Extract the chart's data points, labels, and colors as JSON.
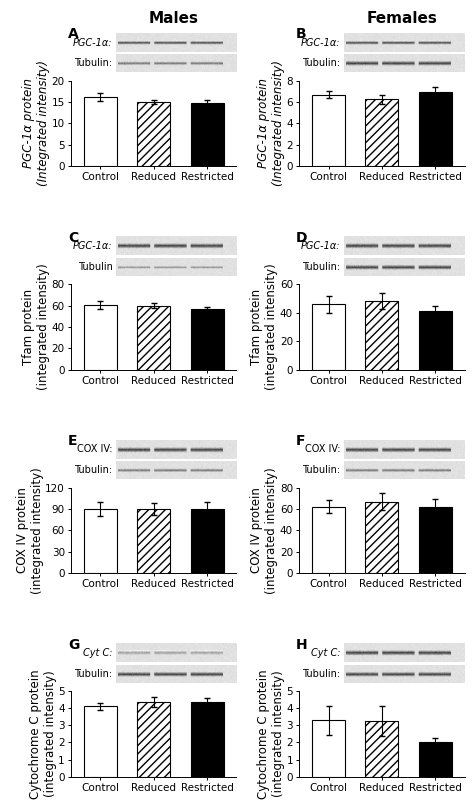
{
  "panels": [
    {
      "label": "A",
      "title": "Males",
      "blot_label1": "PGC-1α:",
      "blot_label2": "Tubulin:",
      "ylabel": "PGC-1α protein\n(Integrated intensity)",
      "ylabel_italic": true,
      "ylim": [
        0,
        20
      ],
      "yticks": [
        0,
        5,
        10,
        15,
        20
      ],
      "values": [
        16.2,
        15.0,
        14.8
      ],
      "errors": [
        0.9,
        0.5,
        0.7
      ],
      "categories": [
        "Control",
        "Reduced",
        "Restricted"
      ],
      "blot1_style": "dark_thin",
      "blot2_style": "medium"
    },
    {
      "label": "B",
      "title": "Females",
      "blot_label1": "PGC-1α:",
      "blot_label2": "Tubulin:",
      "ylabel": "PGC-1α protein\n(Integrated intensity)",
      "ylabel_italic": true,
      "ylim": [
        0,
        8
      ],
      "yticks": [
        0,
        2,
        4,
        6,
        8
      ],
      "values": [
        6.7,
        6.25,
        6.9
      ],
      "errors": [
        0.35,
        0.45,
        0.55
      ],
      "categories": [
        "Control",
        "Reduced",
        "Restricted"
      ],
      "blot1_style": "dark_thin",
      "blot2_style": "dark_thick"
    },
    {
      "label": "C",
      "title": "",
      "blot_label1": "PGC-1α:",
      "blot_label2": "Tubulin",
      "ylabel": "Tfam protein\n(integrated intensity)",
      "ylabel_italic": false,
      "ylim": [
        0,
        80
      ],
      "yticks": [
        0,
        20,
        40,
        60,
        80
      ],
      "values": [
        60.5,
        60.0,
        56.5
      ],
      "errors": [
        4.0,
        2.5,
        1.8
      ],
      "categories": [
        "Control",
        "Reduced",
        "Restricted"
      ],
      "blot1_style": "dark_thick",
      "blot2_style": "medium_thin"
    },
    {
      "label": "D",
      "title": "",
      "blot_label1": "PGC-1α:",
      "blot_label2": "Tubulin:",
      "ylabel": "Tfam protein\n(integrated intensity)",
      "ylabel_italic": false,
      "ylim": [
        0,
        60
      ],
      "yticks": [
        0,
        20,
        40,
        60
      ],
      "values": [
        46.0,
        48.0,
        41.0
      ],
      "errors": [
        6.0,
        5.5,
        4.0
      ],
      "categories": [
        "Control",
        "Reduced",
        "Restricted"
      ],
      "blot1_style": "dark_thick",
      "blot2_style": "dark_thick"
    },
    {
      "label": "E",
      "title": "",
      "blot_label1": "COX IV:",
      "blot_label2": "Tubulin:",
      "ylabel": "COX IV protein\n(integrated intensity)",
      "ylabel_italic": false,
      "ylim": [
        0,
        120
      ],
      "yticks": [
        0,
        30,
        60,
        90,
        120
      ],
      "values": [
        90.0,
        90.0,
        90.0
      ],
      "errors": [
        10.0,
        9.0,
        10.0
      ],
      "categories": [
        "Control",
        "Reduced",
        "Restricted"
      ],
      "blot1_style": "dark_thick",
      "blot2_style": "medium"
    },
    {
      "label": "F",
      "title": "",
      "blot_label1": "COX IV:",
      "blot_label2": "Tubulin:",
      "ylabel": "COX IV protein\n(integrated intensity)",
      "ylabel_italic": false,
      "ylim": [
        0,
        80
      ],
      "yticks": [
        0,
        20,
        40,
        60,
        80
      ],
      "values": [
        62.0,
        67.0,
        62.0
      ],
      "errors": [
        6.0,
        8.0,
        7.0
      ],
      "categories": [
        "Control",
        "Reduced",
        "Restricted"
      ],
      "blot1_style": "dark_thick",
      "blot2_style": "medium"
    },
    {
      "label": "G",
      "title": "",
      "blot_label1": "Cyt C:",
      "blot_label2": "Tubulin:",
      "ylabel": "Cytochrome C protein\n(integrated intensity)",
      "ylabel_italic": false,
      "ylim": [
        0,
        5
      ],
      "yticks": [
        0,
        1,
        2,
        3,
        4,
        5
      ],
      "values": [
        4.1,
        4.35,
        4.35
      ],
      "errors": [
        0.2,
        0.28,
        0.25
      ],
      "categories": [
        "Control",
        "Reduced",
        "Restricted"
      ],
      "blot1_style": "light_fuzzy",
      "blot2_style": "dark_thick"
    },
    {
      "label": "H",
      "title": "",
      "blot_label1": "Cyt C:",
      "blot_label2": "Tubulin:",
      "ylabel": "Cytochrome C protein\n(integrated intensity)",
      "ylabel_italic": false,
      "ylim": [
        0,
        5
      ],
      "yticks": [
        0,
        1,
        2,
        3,
        4,
        5
      ],
      "values": [
        3.3,
        3.25,
        2.0
      ],
      "errors": [
        0.85,
        0.85,
        0.25
      ],
      "categories": [
        "Control",
        "Reduced",
        "Restricted"
      ],
      "blot1_style": "dark_thick",
      "blot2_style": "dark_thick"
    }
  ],
  "bar_colors": [
    "white",
    "white",
    "black"
  ],
  "bar_hatch": [
    null,
    "////",
    null
  ],
  "bar_edgecolor": "black",
  "background_color": "white",
  "title_fontsize": 11,
  "label_fontsize": 8.5,
  "tick_fontsize": 7.5
}
